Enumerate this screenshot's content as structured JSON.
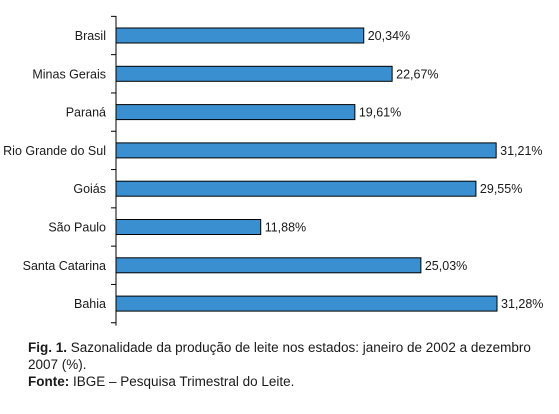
{
  "chart_data": {
    "type": "bar",
    "orientation": "horizontal",
    "categories": [
      "Brasil",
      "Minas Gerais",
      "Paraná",
      "Rio Grande do Sul",
      "Goiás",
      "São Paulo",
      "Santa Catarina",
      "Bahia"
    ],
    "values": [
      20.34,
      22.67,
      19.61,
      31.21,
      29.55,
      11.88,
      25.03,
      31.28
    ],
    "value_labels": [
      "20,34%",
      "22,67%",
      "19,61%",
      "31,21%",
      "29,55%",
      "11,88%",
      "25,03%",
      "31,28%"
    ],
    "xlim": [
      0,
      31.28
    ],
    "bar_color": "#3a8fd0",
    "grid": false
  },
  "caption": {
    "fig_label": "Fig. 1.",
    "text": "Sazonalidade da produção de leite nos estados: janeiro de 2002 a dezembro 2007 (%).",
    "source_label": "Fonte:",
    "source_text": "IBGE – Pesquisa Trimestral do Leite."
  }
}
